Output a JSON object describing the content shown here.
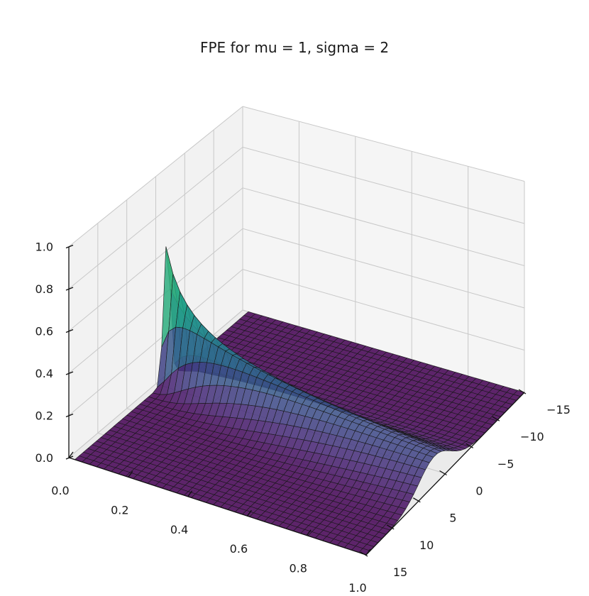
{
  "chart_data": {
    "type": "surface3d",
    "title": "FPE for mu = 1, sigma = 2",
    "params": {
      "mu": 1,
      "sigma": 2
    },
    "colormap": "viridis",
    "x_axis": {
      "label": "",
      "range": [
        0.0,
        1.0
      ],
      "ticks": [
        "0.0",
        "0.2",
        "0.4",
        "0.6",
        "0.8",
        "1.0"
      ]
    },
    "y_axis": {
      "label": "",
      "range": [
        -15,
        15
      ],
      "ticks": [
        "-15",
        "-10",
        "-5",
        "0",
        "5",
        "10",
        "15"
      ]
    },
    "z_axis": {
      "label": "",
      "range": [
        0.0,
        1.0
      ],
      "ticks": [
        "0.0",
        "0.2",
        "0.4",
        "0.6",
        "0.8",
        "1.0"
      ]
    },
    "grid": true,
    "legend": null,
    "surface_description": "Probability density p(x, t) solving the Fokker-Planck equation: a sharp spike (peak ~1.0) at t=0 near x~-1, decaying and spreading as a Gaussian ridge drifting toward positive x as t increases to 1; elsewhere ~0.",
    "approx_peak": {
      "t": 0.0,
      "x": -1,
      "z": 1.0
    },
    "approx_ridge_end": {
      "t": 1.0,
      "x": 2,
      "z": 0.12
    }
  },
  "labels": {
    "title": "FPE for mu = 1, sigma = 2"
  }
}
